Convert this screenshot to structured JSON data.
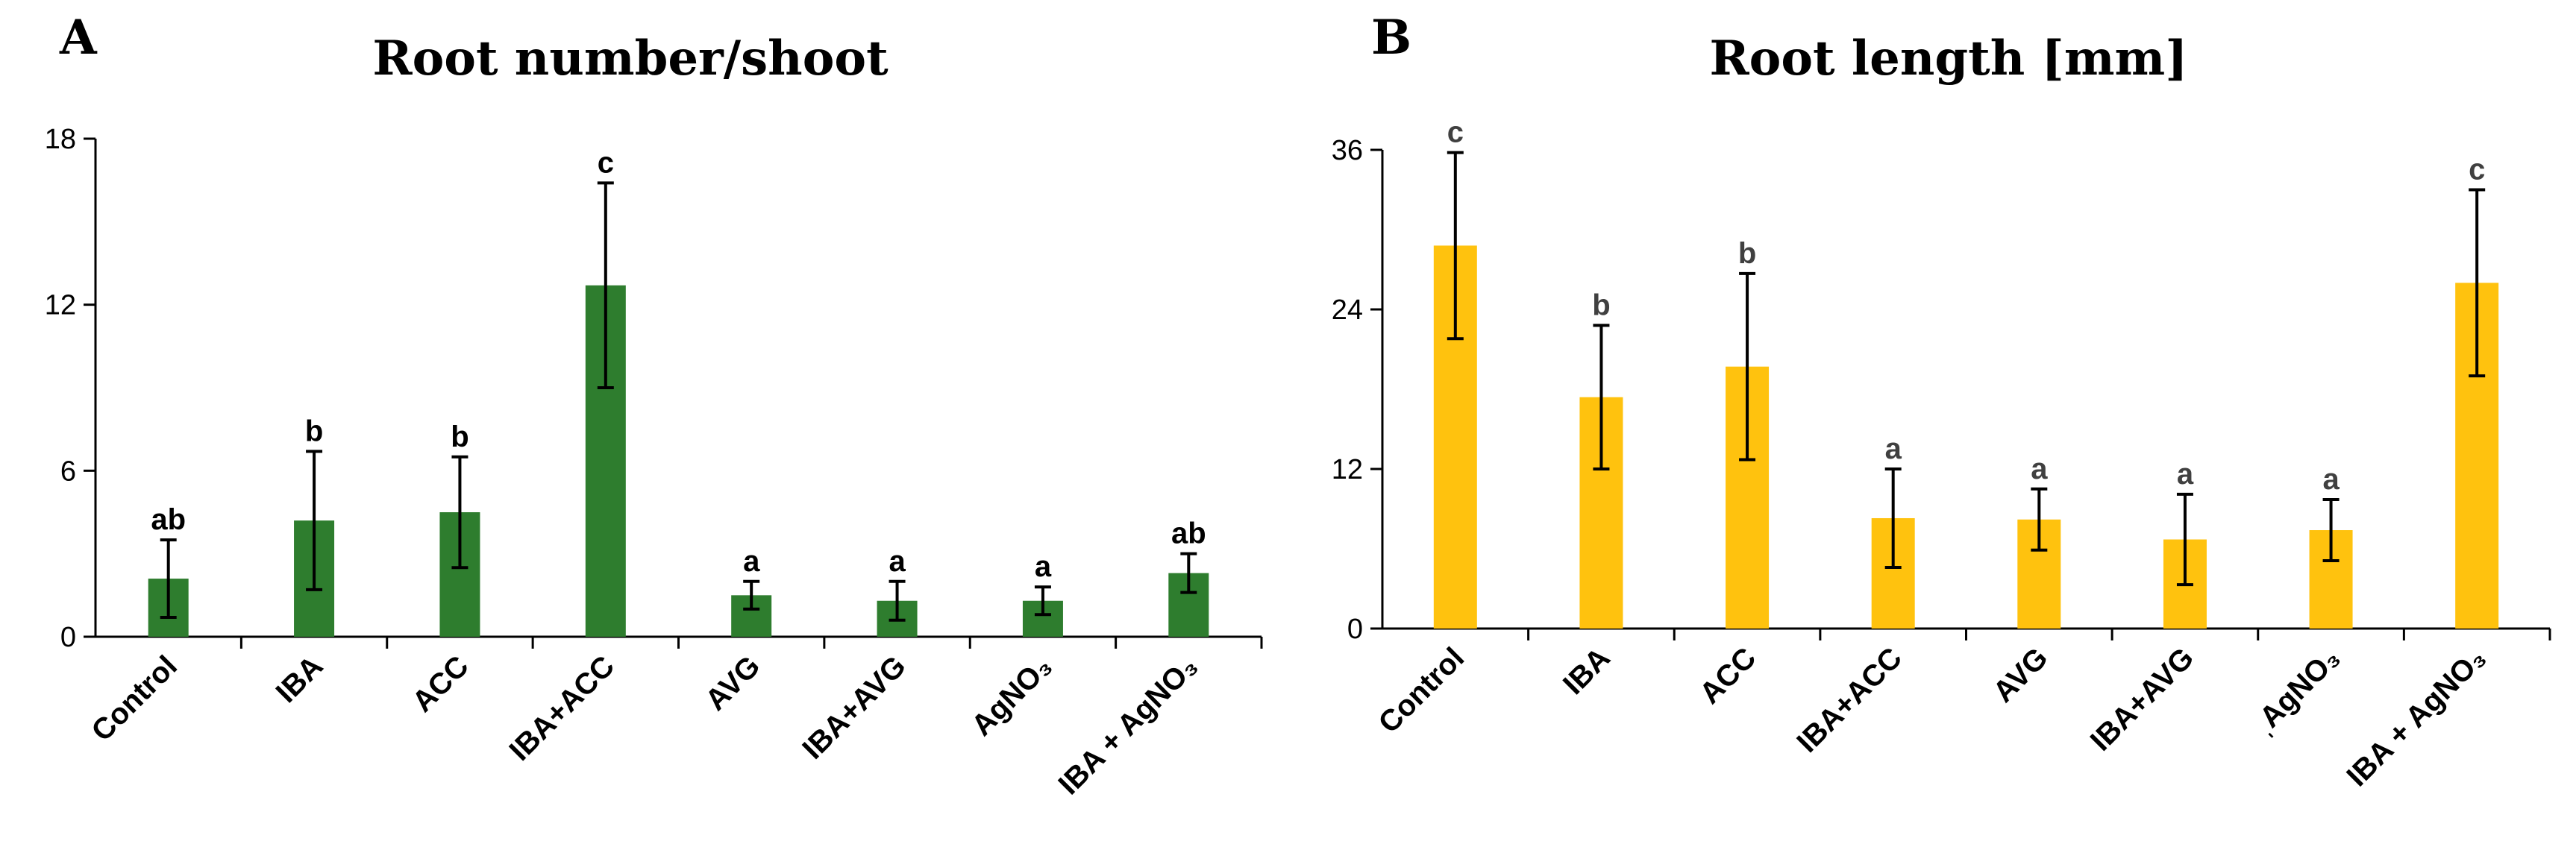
{
  "chart_data": [
    {
      "panel": "A",
      "type": "bar",
      "title": "Root number/shoot",
      "color": "#2e7d2e",
      "sig_color": "#000000",
      "ylim": [
        0,
        18
      ],
      "yticks": [
        0,
        6,
        12,
        18
      ],
      "categories": [
        "Control",
        "IBA",
        "ACC",
        "IBA+ACC",
        "AVG",
        "IBA+AVG",
        "AgNO₃",
        "IBA + AgNO₃"
      ],
      "values": [
        2.1,
        4.2,
        4.5,
        12.7,
        1.5,
        1.3,
        1.3,
        2.3
      ],
      "errors": [
        1.4,
        2.5,
        2.0,
        3.7,
        0.5,
        0.7,
        0.5,
        0.7
      ],
      "significance": [
        "ab",
        "b",
        "b",
        "c",
        "a",
        "a",
        "a",
        "ab"
      ]
    },
    {
      "panel": "B",
      "type": "bar",
      "title": "Root length [mm]",
      "color": "#ffc20e",
      "sig_color": "#404040",
      "ylim": [
        0,
        36
      ],
      "yticks": [
        0,
        12,
        24,
        36
      ],
      "categories": [
        "Control",
        "IBA",
        "ACC",
        "IBA+ACC",
        "AVG",
        "IBA+AVG",
        "ˌAgNO₃",
        "IBA + AgNO₃"
      ],
      "values": [
        28.8,
        17.4,
        19.7,
        8.3,
        8.2,
        6.7,
        7.4,
        26.0
      ],
      "errors": [
        7.0,
        5.4,
        7.0,
        3.7,
        2.3,
        3.4,
        2.3,
        7.0
      ],
      "significance": [
        "c",
        "b",
        "b",
        "a",
        "a",
        "a",
        "a",
        "c"
      ]
    }
  ]
}
